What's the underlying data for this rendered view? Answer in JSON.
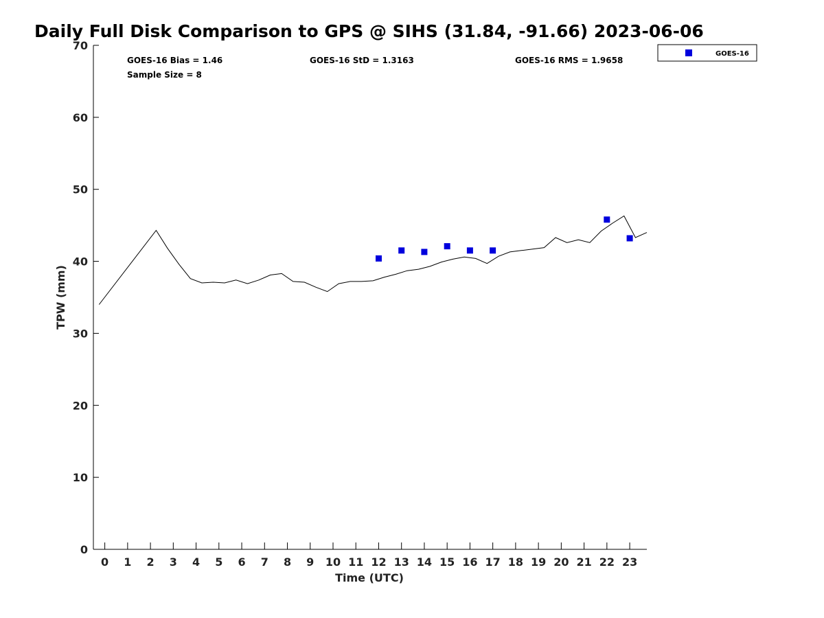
{
  "chart_data": {
    "type": "line",
    "title": "Daily Full Disk Comparison to GPS @ SIHS (31.84, -91.66) 2023-06-06",
    "xlabel": "Time (UTC)",
    "ylabel": "TPW (mm)",
    "xlim": [
      -0.5,
      23.75
    ],
    "ylim": [
      0,
      70
    ],
    "x_ticks": [
      "0",
      "1",
      "2",
      "3",
      "4",
      "5",
      "6",
      "7",
      "8",
      "9",
      "10",
      "11",
      "12",
      "13",
      "14",
      "15",
      "16",
      "17",
      "18",
      "19",
      "20",
      "21",
      "22",
      "23"
    ],
    "y_ticks": [
      "0",
      "10",
      "20",
      "30",
      "40",
      "50",
      "60",
      "70"
    ],
    "grid": false,
    "legend_position": "top-right, outside plot",
    "stats": {
      "bias": "GOES-16 Bias = 1.46",
      "std": "GOES-16 StD = 1.3163",
      "rms": "GOES-16 RMS = 1.9658",
      "sample_size": "Sample Size = 8"
    },
    "series": [
      {
        "kind": "line",
        "color": "#000000",
        "x": [
          -0.25,
          2.25,
          2.75,
          3.25,
          3.75,
          4.25,
          4.75,
          5.25,
          5.75,
          6.25,
          6.75,
          7.25,
          7.75,
          8.25,
          8.75,
          9.25,
          9.75,
          10.25,
          10.75,
          11.25,
          11.75,
          12.25,
          12.75,
          13.25,
          13.75,
          14.25,
          14.75,
          15.25,
          15.75,
          16.25,
          16.75,
          17.25,
          17.75,
          18.25,
          18.75,
          19.25,
          19.75,
          20.25,
          20.75,
          21.25,
          21.75,
          22.25,
          22.75,
          23.25,
          23.75
        ],
        "values": [
          34.0,
          44.3,
          41.8,
          39.6,
          37.6,
          37.0,
          37.1,
          37.0,
          37.4,
          36.9,
          37.4,
          38.1,
          38.3,
          37.2,
          37.1,
          36.4,
          35.8,
          36.9,
          37.2,
          37.2,
          37.3,
          37.8,
          38.2,
          38.7,
          38.9,
          39.3,
          39.9,
          40.3,
          40.6,
          40.4,
          39.7,
          40.7,
          41.3,
          41.5,
          41.7,
          41.9,
          43.3,
          42.6,
          43.0,
          42.6,
          44.2,
          45.3,
          46.3,
          43.3,
          44.0
        ]
      },
      {
        "kind": "scatter",
        "name": "GOES-16",
        "color": "#0000dd",
        "x": [
          12,
          13,
          14,
          15,
          16,
          17,
          22,
          23
        ],
        "values": [
          40.4,
          41.5,
          41.3,
          42.1,
          41.5,
          41.5,
          45.8,
          43.2
        ]
      }
    ]
  }
}
